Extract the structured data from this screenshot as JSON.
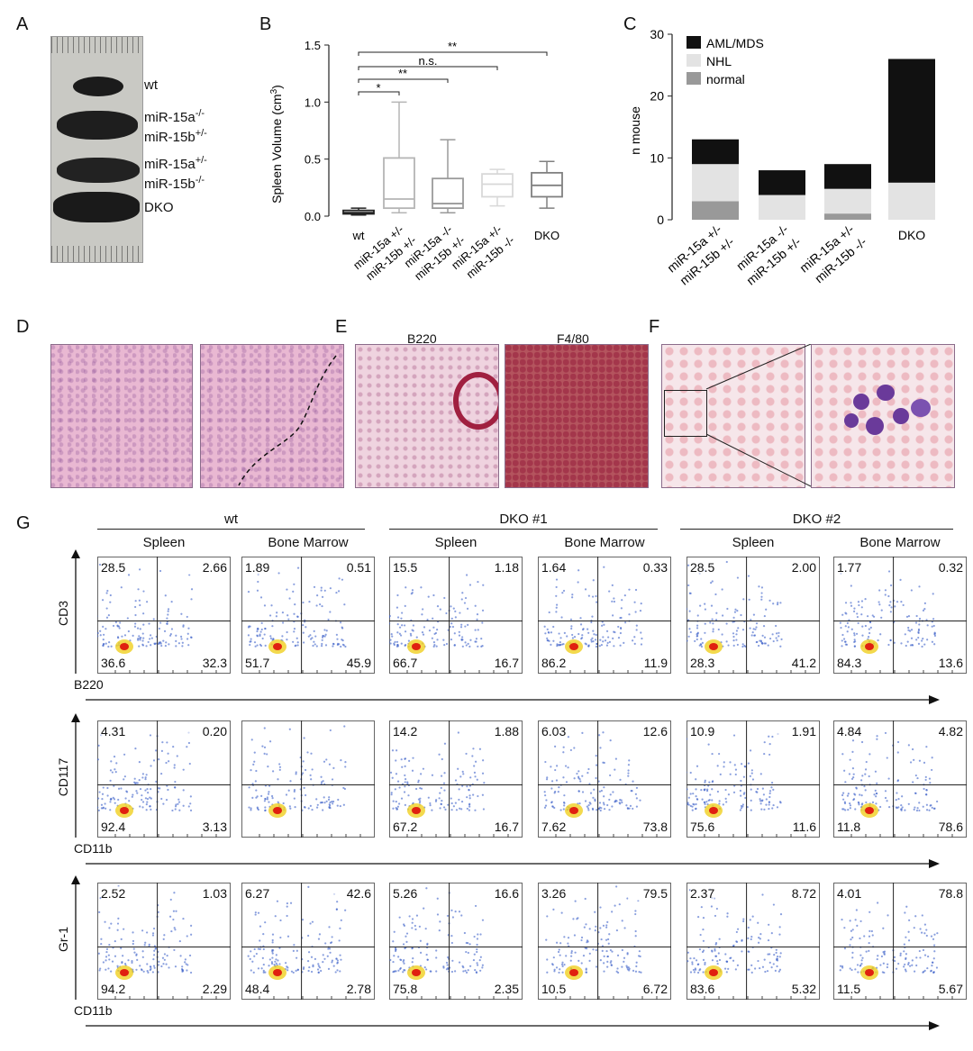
{
  "panels": {
    "A": {
      "letter": "A",
      "labels": [
        "wt",
        "miR-15a",
        "-/-",
        "miR-15b",
        "+/-",
        "miR-15a",
        "+/-",
        "miR-15b",
        "-/-",
        "DKO"
      ]
    },
    "B": {
      "letter": "B",
      "sig": [
        "**",
        "n.s.",
        "**",
        "*"
      ]
    },
    "C": {
      "letter": "C"
    },
    "D": {
      "letter": "D"
    },
    "E": {
      "letter": "E",
      "titles": [
        "B220",
        "F4/80"
      ]
    },
    "F": {
      "letter": "F"
    },
    "G": {
      "letter": "G",
      "groups": [
        "wt",
        "DKO #1",
        "DKO #2"
      ],
      "tissues": [
        "Spleen",
        "Bone Marrow",
        "Spleen",
        "Bone Marrow",
        "Spleen",
        "Bone Marrow"
      ],
      "rows": [
        {
          "ylabel": "CD3",
          "xlabel": "B220",
          "quadrants": [
            [
              "28.5",
              "2.66",
              "36.6",
              "32.3"
            ],
            [
              "1.89",
              "0.51",
              "51.7",
              "45.9"
            ],
            [
              "15.5",
              "1.18",
              "66.7",
              "16.7"
            ],
            [
              "1.64",
              "0.33",
              "86.2",
              "11.9"
            ],
            [
              "28.5",
              "2.00",
              "28.3",
              "41.2"
            ],
            [
              "1.77",
              "0.32",
              "84.3",
              "13.6"
            ]
          ]
        },
        {
          "ylabel": "CD117",
          "xlabel": "CD11b",
          "quadrants": [
            [
              "4.31",
              "0.20",
              "92.4",
              "3.13"
            ],
            [
              "",
              "",
              "",
              ""
            ],
            [
              "14.2",
              "1.88",
              "67.2",
              "16.7"
            ],
            [
              "6.03",
              "12.6",
              "7.62",
              "73.8"
            ],
            [
              "10.9",
              "1.91",
              "75.6",
              "11.6"
            ],
            [
              "4.84",
              "4.82",
              "11.8",
              "78.6"
            ]
          ]
        },
        {
          "ylabel": "Gr-1",
          "xlabel": "CD11b",
          "quadrants": [
            [
              "2.52",
              "1.03",
              "94.2",
              "2.29"
            ],
            [
              "6.27",
              "42.6",
              "48.4",
              "2.78"
            ],
            [
              "5.26",
              "16.6",
              "75.8",
              "2.35"
            ],
            [
              "3.26",
              "79.5",
              "10.5",
              "6.72"
            ],
            [
              "2.37",
              "8.72",
              "83.6",
              "5.32"
            ],
            [
              "4.01",
              "78.8",
              "11.5",
              "5.67"
            ]
          ]
        }
      ]
    }
  },
  "chart_data": [
    {
      "type": "box",
      "title": "",
      "ylabel": "Spleen Volume (cm3)",
      "ylabel_main": "Spleen Volume (cm",
      "ylabel_sup": "3",
      "ylabel_close": ")",
      "ylim": [
        0,
        1.5
      ],
      "yticks": [
        "0.0",
        "0.5",
        "1.0",
        "1.5"
      ],
      "categories": [
        {
          "top": "wt",
          "line1": "",
          "line2": ""
        },
        {
          "top": "",
          "line1": "miR-15a +/-",
          "line2": "miR-15b +/-"
        },
        {
          "top": "",
          "line1": "miR-15a -/-",
          "line2": "miR-15b +/-"
        },
        {
          "top": "",
          "line1": "miR-15a +/-",
          "line2": "miR-15b -/-"
        },
        {
          "top": "DKO",
          "line1": "",
          "line2": ""
        }
      ],
      "boxes": [
        {
          "min": 0.01,
          "q1": 0.02,
          "median": 0.03,
          "q3": 0.05,
          "max": 0.07,
          "color": "#222222"
        },
        {
          "min": 0.03,
          "q1": 0.07,
          "median": 0.15,
          "q3": 0.51,
          "max": 1.0,
          "color": "#b5b5b5"
        },
        {
          "min": 0.03,
          "q1": 0.07,
          "median": 0.11,
          "q3": 0.33,
          "max": 0.67,
          "color": "#9a9a9a"
        },
        {
          "min": 0.09,
          "q1": 0.17,
          "median": 0.28,
          "q3": 0.37,
          "max": 0.41,
          "color": "#d8d8d8"
        },
        {
          "min": 0.07,
          "q1": 0.17,
          "median": 0.27,
          "q3": 0.38,
          "max": 0.48,
          "color": "#808080"
        }
      ]
    },
    {
      "type": "stacked-bar",
      "ylabel": "n mouse",
      "ylim": [
        0,
        30
      ],
      "yticks": [
        "0",
        "10",
        "20",
        "30"
      ],
      "categories": [
        {
          "top": "",
          "line1": "miR-15a +/-",
          "line2": "miR-15b +/-"
        },
        {
          "top": "",
          "line1": "miR-15a -/-",
          "line2": "miR-15b +/-"
        },
        {
          "top": "",
          "line1": "miR-15a +/-",
          "line2": "miR-15b -/-"
        },
        {
          "top": "DKO",
          "line1": "",
          "line2": ""
        }
      ],
      "series": [
        {
          "name": "normal",
          "values": [
            3,
            0,
            1,
            0
          ],
          "color": "#999999"
        },
        {
          "name": "NHL",
          "values": [
            6,
            4,
            4,
            6
          ],
          "color": "#e3e3e3"
        },
        {
          "name": "AML/MDS",
          "values": [
            4,
            4,
            4,
            20
          ],
          "color": "#111111"
        }
      ],
      "legend_order": [
        "AML/MDS",
        "NHL",
        "normal"
      ]
    }
  ]
}
